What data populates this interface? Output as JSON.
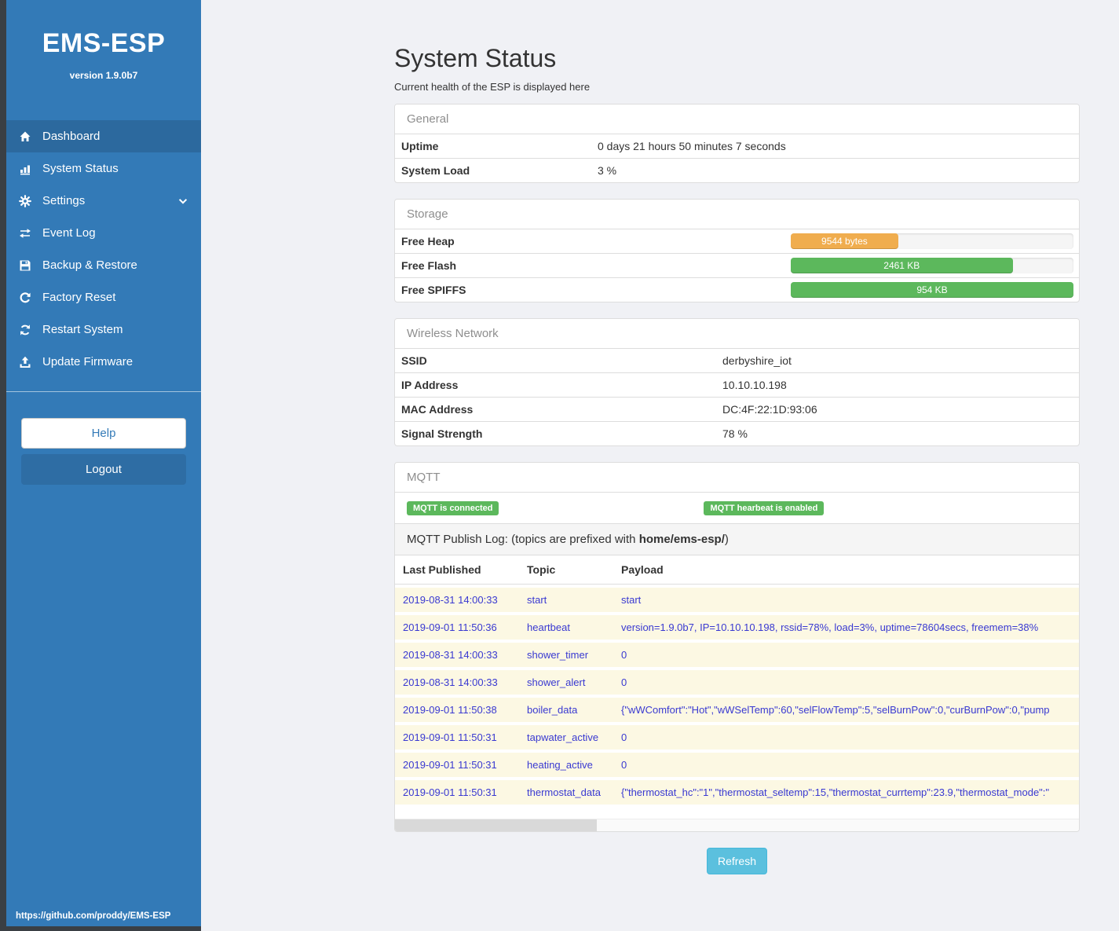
{
  "sidebar": {
    "title": "EMS-ESP",
    "version": "version 1.9.0b7",
    "items": [
      {
        "label": "Dashboard",
        "icon": "home",
        "active": true
      },
      {
        "label": "System Status",
        "icon": "chart",
        "active": false
      },
      {
        "label": "Settings",
        "icon": "gear",
        "active": false,
        "chevron": true
      },
      {
        "label": "Event Log",
        "icon": "exchange",
        "active": false
      },
      {
        "label": "Backup & Restore",
        "icon": "save",
        "active": false
      },
      {
        "label": "Factory Reset",
        "icon": "reset",
        "active": false
      },
      {
        "label": "Restart System",
        "icon": "sync",
        "active": false
      },
      {
        "label": "Update Firmware",
        "icon": "upload",
        "active": false
      }
    ],
    "help_label": "Help",
    "logout_label": "Logout",
    "footer_link": "https://github.com/proddy/EMS-ESP"
  },
  "page": {
    "title": "System Status",
    "subtitle": "Current health of the ESP is displayed here"
  },
  "general": {
    "header": "General",
    "rows": [
      {
        "label": "Uptime",
        "value": "0 days 21 hours 50 minutes 7 seconds"
      },
      {
        "label": "System Load",
        "value": "3 %"
      }
    ]
  },
  "storage": {
    "header": "Storage",
    "rows": [
      {
        "label": "Free Heap",
        "value": "9544 bytes",
        "percent": 38,
        "color": "#f0ad4e"
      },
      {
        "label": "Free Flash",
        "value": "2461 KB",
        "percent": 78.5,
        "color": "#5cb85c"
      },
      {
        "label": "Free SPIFFS",
        "value": "954 KB",
        "percent": 100,
        "color": "#5cb85c"
      }
    ]
  },
  "wireless": {
    "header": "Wireless Network",
    "rows": [
      {
        "label": "SSID",
        "value": "derbyshire_iot"
      },
      {
        "label": "IP Address",
        "value": "10.10.10.198"
      },
      {
        "label": "MAC Address",
        "value": "DC:4F:22:1D:93:06"
      },
      {
        "label": "Signal Strength",
        "value": "78 %"
      }
    ]
  },
  "mqtt": {
    "header": "MQTT",
    "badges": [
      "MQTT is connected",
      "MQTT hearbeat is enabled"
    ],
    "publish_log": {
      "prefix": "MQTT Publish Log: (topics are prefixed with ",
      "bold": "home/ems-esp/",
      "suffix": ")"
    },
    "table": {
      "headers": [
        "Last Published",
        "Topic",
        "Payload"
      ],
      "rows": [
        [
          "2019-08-31 14:00:33",
          "start",
          "start"
        ],
        [
          "2019-09-01 11:50:36",
          "heartbeat",
          "version=1.9.0b7, IP=10.10.10.198, rssid=78%, load=3%, uptime=78604secs, freemem=38%"
        ],
        [
          "2019-08-31 14:00:33",
          "shower_timer",
          "0"
        ],
        [
          "2019-08-31 14:00:33",
          "shower_alert",
          "0"
        ],
        [
          "2019-09-01 11:50:38",
          "boiler_data",
          "{\"wWComfort\":\"Hot\",\"wWSelTemp\":60,\"selFlowTemp\":5,\"selBurnPow\":0,\"curBurnPow\":0,\"pump"
        ],
        [
          "2019-09-01 11:50:31",
          "tapwater_active",
          "0"
        ],
        [
          "2019-09-01 11:50:31",
          "heating_active",
          "0"
        ],
        [
          "2019-09-01 11:50:31",
          "thermostat_data",
          "{\"thermostat_hc\":\"1\",\"thermostat_seltemp\":15,\"thermostat_currtemp\":23.9,\"thermostat_mode\":\""
        ]
      ]
    },
    "refresh_label": "Refresh"
  },
  "colors": {
    "sidebar_bg": "#337ab7",
    "sidebar_active_bg": "#2c699e",
    "frame_dark": "#3a3f44",
    "content_bg": "#f0f1f5",
    "panel_border": "#dddddd",
    "success_green": "#5cb85c",
    "warning_orange": "#f0ad4e",
    "info_blue": "#5bc0de",
    "log_text_blue": "#3939d1",
    "log_row_bg": "#fcf8e3"
  }
}
